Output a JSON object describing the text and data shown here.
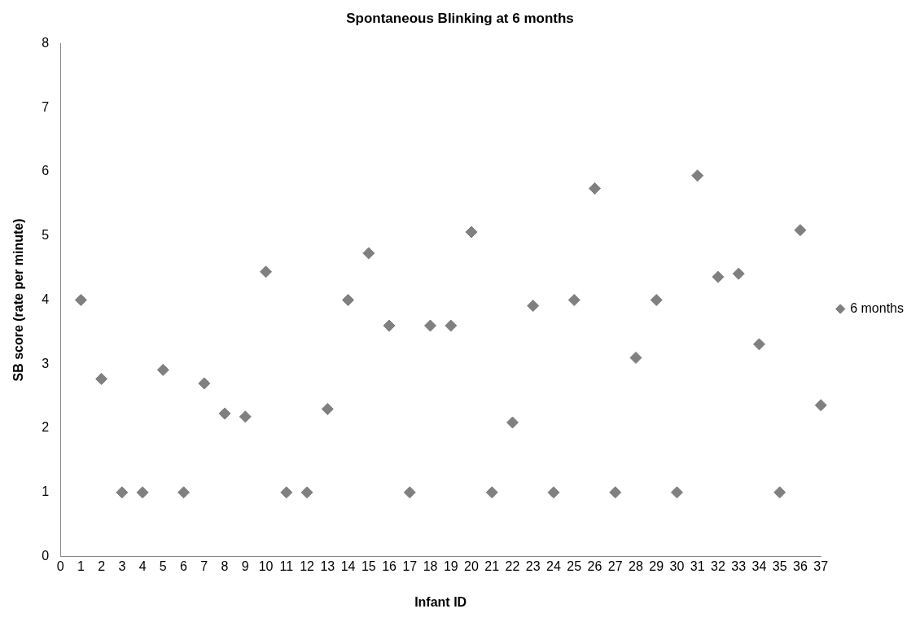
{
  "chart_data": {
    "type": "scatter",
    "title": "Spontaneous Blinking at 6 months",
    "xlabel": "Infant ID",
    "ylabel": "SB score (rate per minute)",
    "x": [
      1,
      2,
      3,
      4,
      5,
      6,
      7,
      8,
      9,
      10,
      11,
      12,
      13,
      14,
      15,
      16,
      17,
      18,
      19,
      20,
      21,
      22,
      23,
      24,
      25,
      26,
      27,
      28,
      29,
      30,
      31,
      32,
      33,
      34,
      35,
      36,
      37
    ],
    "series": [
      {
        "name": "6 months",
        "color": "#808080",
        "values": [
          4,
          2.77,
          1,
          1,
          2.91,
          1,
          2.7,
          2.23,
          2.18,
          4.44,
          1,
          1,
          2.3,
          4,
          4.73,
          3.6,
          1,
          3.6,
          3.6,
          5.06,
          1,
          2.09,
          3.91,
          1,
          4,
          5.74,
          1,
          3.1,
          4,
          1,
          5.94,
          4.36,
          4.41,
          3.31,
          1,
          5.09,
          2.36
        ]
      }
    ],
    "xlim": [
      0,
      37
    ],
    "xticks": [
      0,
      1,
      2,
      3,
      4,
      5,
      6,
      7,
      8,
      9,
      10,
      11,
      12,
      13,
      14,
      15,
      16,
      17,
      18,
      19,
      20,
      21,
      22,
      23,
      24,
      25,
      26,
      27,
      28,
      29,
      30,
      31,
      32,
      33,
      34,
      35,
      36,
      37
    ],
    "ylim": [
      0,
      8
    ],
    "yticks": [
      0,
      1,
      2,
      3,
      4,
      5,
      6,
      7,
      8
    ],
    "grid": false,
    "legend": "right",
    "marker": "diamond"
  }
}
